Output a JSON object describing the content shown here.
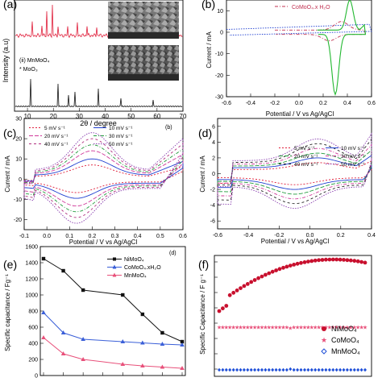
{
  "panels": {
    "a": {
      "letter": "(a)",
      "xlabel": "2θ / degree",
      "ylabel": "Intensity (a.u)",
      "xticks": [
        "10",
        "20",
        "30",
        "40",
        "50",
        "60",
        "70"
      ],
      "labels": [
        "(ii) MnMoO₄",
        "* MoO₃"
      ]
    },
    "b": {
      "letter": "(b)",
      "legend": "CoMoO₄.x H₂O",
      "xlabel": "Potential / V vs Ag/AgCl",
      "ylabel": "Current / mA",
      "xticks": [
        "-0.6",
        "-0.4",
        "-0.2",
        "0.0",
        "0.2",
        "0.4",
        "0.6"
      ],
      "yticks": [
        "10",
        "0",
        "-10",
        "-20",
        "-30"
      ]
    },
    "c": {
      "letter": "(c)",
      "inner_tag": "(b)",
      "xlabel": "Potential / V vs Ag/AgCl",
      "ylabel": "Current / mA",
      "xticks": [
        "-0.1",
        "0.0",
        "0.1",
        "0.2",
        "0.3",
        "0.4",
        "0.5",
        "0.6"
      ],
      "yticks": [
        "30",
        "20",
        "10",
        "0",
        "-10",
        "-20"
      ]
    },
    "d": {
      "letter": "(d)",
      "xlabel": "Potential / V vs Ag/AgCl",
      "ylabel": "Current / mA",
      "xticks": [
        "-0.6",
        "-0.4",
        "-0.2",
        "0.0",
        "0.2",
        "0.4"
      ],
      "yticks": [
        "6",
        "4",
        "2",
        "0",
        "-2",
        "-4",
        "-6"
      ]
    },
    "e": {
      "letter": "(e)",
      "inner_tag": "(d)",
      "ylabel": "Specific capacitance / Fg⁻¹",
      "yticks": [
        "1600",
        "1400",
        "1200",
        "1000",
        "800",
        "600",
        "400",
        "200",
        "0"
      ]
    },
    "f": {
      "letter": "(f)",
      "ylabel": "Specific Capacitance / F g⁻¹"
    }
  },
  "chart_data": [
    {
      "panel": "c",
      "type": "line",
      "xlim": [
        -0.1,
        0.6
      ],
      "ylim": [
        -25,
        30
      ],
      "series": [
        {
          "name": "5 mV s⁻¹",
          "color": "#e0203c",
          "scale": 0.35
        },
        {
          "name": "10 mV s⁻¹",
          "color": "#1f3fd0",
          "scale": 0.5
        },
        {
          "name": "20 mV s⁻¹",
          "color": "#d0389a",
          "scale": 0.7
        },
        {
          "name": "30 mV s⁻¹",
          "color": "#1f9a3a",
          "scale": 0.85
        },
        {
          "name": "40 mV s⁻¹",
          "color": "#b02f7f",
          "scale": 1.0
        },
        {
          "name": "50 mV s⁻¹",
          "color": "#8a3fb0",
          "scale": 1.15
        }
      ]
    },
    {
      "panel": "d",
      "type": "line",
      "xlim": [
        -0.6,
        0.4
      ],
      "ylim": [
        -7,
        7
      ],
      "series": [
        {
          "name": "5 mV s⁻¹",
          "color": "#e0203c",
          "scale": 0.35
        },
        {
          "name": "10 mV s⁻¹",
          "color": "#1f3fd0",
          "scale": 0.5
        },
        {
          "name": "20 mV s⁻¹",
          "color": "#1f9a3a",
          "scale": 0.65
        },
        {
          "name": "30 mV s⁻¹",
          "color": "#d0389a",
          "scale": 0.8
        },
        {
          "name": "40 mV s⁻¹",
          "color": "#222222",
          "scale": 0.95
        },
        {
          "name": "50 mV s⁻¹",
          "color": "#8a3fb0",
          "scale": 1.1
        }
      ]
    },
    {
      "panel": "e",
      "type": "line",
      "ylim": [
        0,
        1600
      ],
      "x": [
        1,
        2,
        3,
        4,
        5,
        6,
        7,
        8
      ],
      "series": [
        {
          "name": "NiMoO₄",
          "color": "#111111",
          "marker": "square",
          "values": [
            1450,
            1300,
            1060,
            null,
            1000,
            760,
            530,
            420
          ]
        },
        {
          "name": "CoMoO₄.xH₂O",
          "color": "#3a5fd8",
          "marker": "triangle",
          "values": [
            780,
            530,
            450,
            null,
            420,
            405,
            390,
            380
          ]
        },
        {
          "name": "MnMoO₄",
          "color": "#e8507a",
          "marker": "triangle",
          "values": [
            470,
            270,
            200,
            null,
            140,
            120,
            105,
            90
          ]
        }
      ]
    },
    {
      "panel": "f",
      "type": "scatter",
      "series": [
        {
          "name": "NiMoO₄",
          "color": "#c8102e",
          "marker": "circle"
        },
        {
          "name": "CoMoO₄",
          "color": "#e8507a",
          "marker": "star"
        },
        {
          "name": "MnMoO₄",
          "color": "#2050d8",
          "marker": "diamond"
        }
      ]
    }
  ]
}
